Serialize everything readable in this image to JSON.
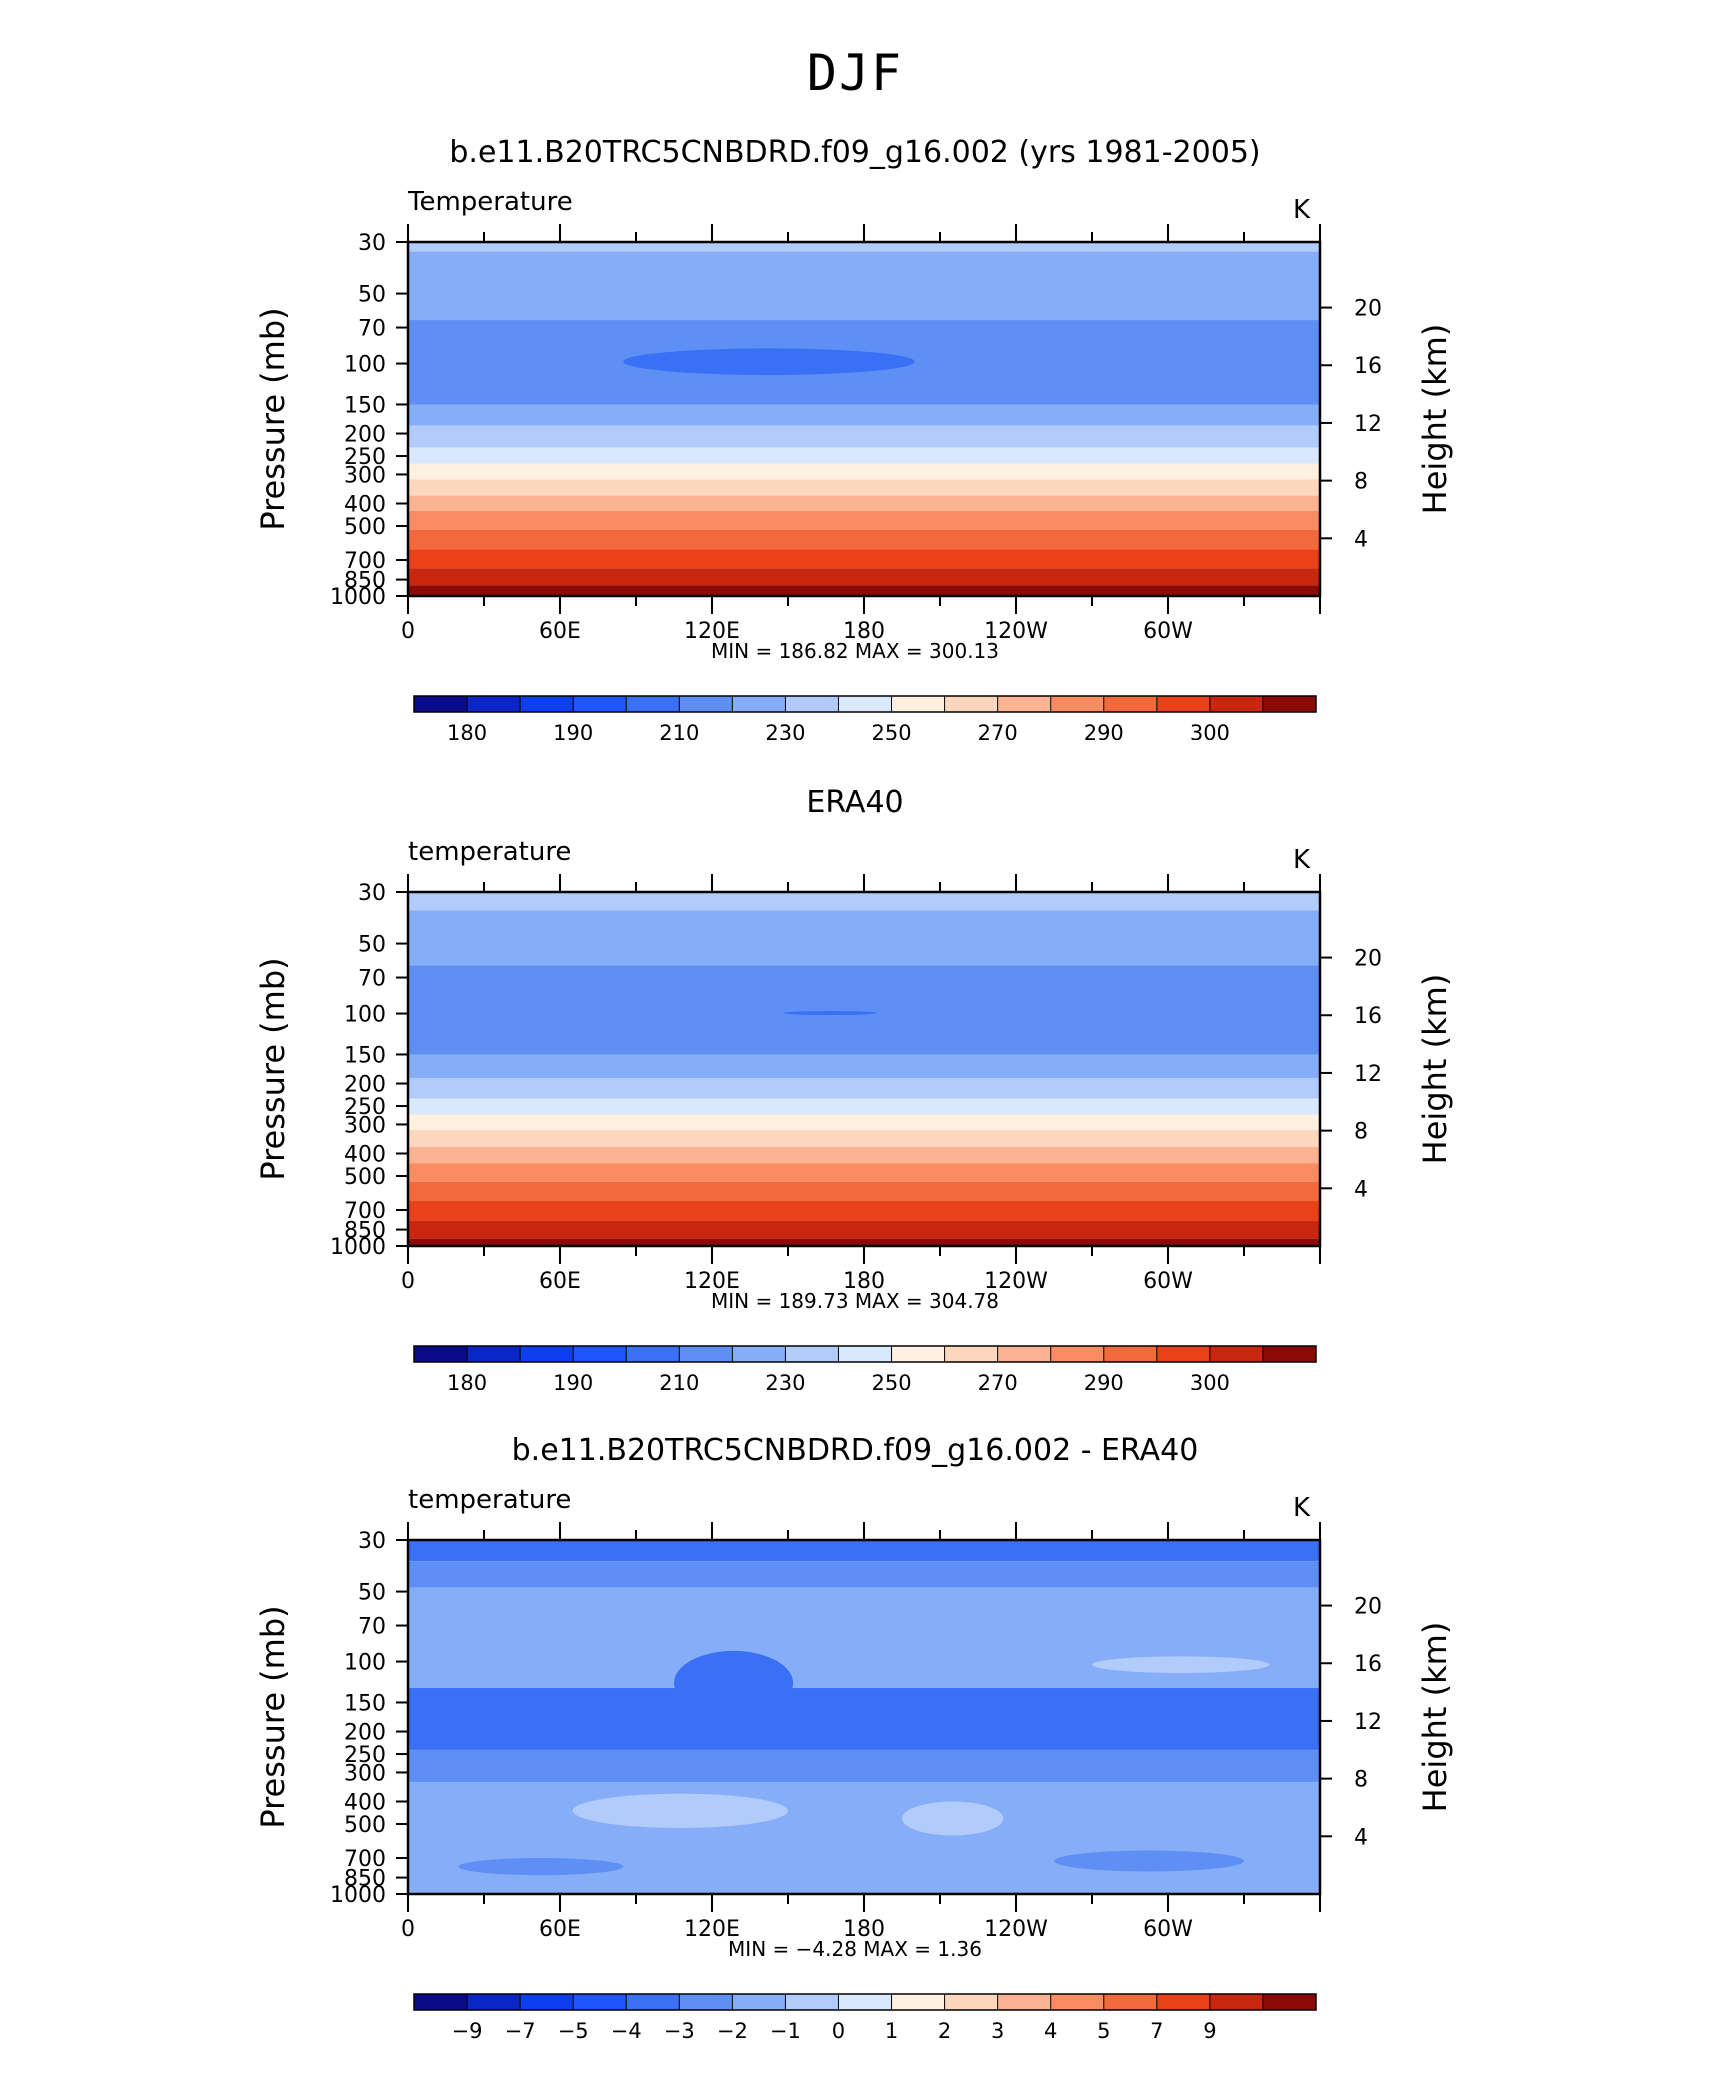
{
  "figure": {
    "title": "DJF"
  },
  "chart_data": [
    {
      "type": "heatmap",
      "title": "b.e11.B20TRC5CNBDRD.f09_g16.002 (yrs 1981-2005)",
      "left_label": "Temperature",
      "units": "K",
      "ylabel": "Pressure (mb)",
      "ylabel_right": "Height (km)",
      "y_scale": "log",
      "ylim": [
        1000,
        30
      ],
      "xlim": [
        0,
        360
      ],
      "x_ticks": [
        "0",
        "60E",
        "120E",
        "180",
        "120W",
        "60W"
      ],
      "y_ticks": [
        30,
        50,
        70,
        100,
        150,
        200,
        250,
        300,
        400,
        500,
        700,
        850,
        1000
      ],
      "y_right_ticks": [
        4,
        8,
        12,
        16,
        20
      ],
      "stats": "MIN = 186.82 MAX = 300.13",
      "colorbar": {
        "labels": [
          "180",
          "190",
          "210",
          "230",
          "250",
          "270",
          "290",
          "300"
        ]
      },
      "bands": [
        {
          "p": [
            30,
            33
          ],
          "level": 7
        },
        {
          "p": [
            33,
            65
          ],
          "level": 6
        },
        {
          "p": [
            65,
            150
          ],
          "level": 5
        },
        {
          "p": [
            150,
            185
          ],
          "level": 6
        },
        {
          "p": [
            185,
            230
          ],
          "level": 7
        },
        {
          "p": [
            230,
            270
          ],
          "level": 8
        },
        {
          "p": [
            270,
            315
          ],
          "level": 9
        },
        {
          "p": [
            315,
            370
          ],
          "level": 10
        },
        {
          "p": [
            370,
            430
          ],
          "level": 11
        },
        {
          "p": [
            430,
            520
          ],
          "level": 12
        },
        {
          "p": [
            520,
            630
          ],
          "level": 13
        },
        {
          "p": [
            630,
            760
          ],
          "level": 14
        },
        {
          "p": [
            760,
            900
          ],
          "level": 15
        },
        {
          "p": [
            900,
            1000
          ],
          "level": 16
        }
      ],
      "features": [
        {
          "lon": [
            85,
            200
          ],
          "p": [
            86,
            112
          ],
          "level": 4
        }
      ]
    },
    {
      "type": "heatmap",
      "title": "ERA40",
      "left_label": "temperature",
      "units": "K",
      "ylabel": "Pressure (mb)",
      "ylabel_right": "Height (km)",
      "y_scale": "log",
      "ylim": [
        1000,
        30
      ],
      "xlim": [
        0,
        360
      ],
      "x_ticks": [
        "0",
        "60E",
        "120E",
        "180",
        "120W",
        "60W"
      ],
      "y_ticks": [
        30,
        50,
        70,
        100,
        150,
        200,
        250,
        300,
        400,
        500,
        700,
        850,
        1000
      ],
      "y_right_ticks": [
        4,
        8,
        12,
        16,
        20
      ],
      "stats": "MIN = 189.73 MAX = 304.78",
      "colorbar": {
        "labels": [
          "180",
          "190",
          "210",
          "230",
          "250",
          "270",
          "290",
          "300"
        ]
      },
      "bands": [
        {
          "p": [
            30,
            36
          ],
          "level": 7
        },
        {
          "p": [
            36,
            62
          ],
          "level": 6
        },
        {
          "p": [
            62,
            150
          ],
          "level": 5
        },
        {
          "p": [
            150,
            190
          ],
          "level": 6
        },
        {
          "p": [
            190,
            232
          ],
          "level": 7
        },
        {
          "p": [
            232,
            272
          ],
          "level": 8
        },
        {
          "p": [
            272,
            318
          ],
          "level": 9
        },
        {
          "p": [
            318,
            375
          ],
          "level": 10
        },
        {
          "p": [
            375,
            440
          ],
          "level": 11
        },
        {
          "p": [
            440,
            530
          ],
          "level": 12
        },
        {
          "p": [
            530,
            640
          ],
          "level": 13
        },
        {
          "p": [
            640,
            780
          ],
          "level": 14
        },
        {
          "p": [
            780,
            930
          ],
          "level": 15
        },
        {
          "p": [
            930,
            1000
          ],
          "level": 16
        }
      ],
      "features": [
        {
          "lon": [
            148,
            185
          ],
          "p": [
            98,
            101
          ],
          "level": 4
        }
      ]
    },
    {
      "type": "heatmap",
      "title": "b.e11.B20TRC5CNBDRD.f09_g16.002 - ERA40",
      "left_label": "temperature",
      "units": "K",
      "ylabel": "Pressure (mb)",
      "ylabel_right": "Height (km)",
      "y_scale": "log",
      "ylim": [
        1000,
        30
      ],
      "xlim": [
        0,
        360
      ],
      "x_ticks": [
        "0",
        "60E",
        "120E",
        "180",
        "120W",
        "60W"
      ],
      "y_ticks": [
        30,
        50,
        70,
        100,
        150,
        200,
        250,
        300,
        400,
        500,
        700,
        850,
        1000
      ],
      "y_right_ticks": [
        4,
        8,
        12,
        16,
        20
      ],
      "stats": "MIN = −4.28 MAX = 1.36",
      "colorbar": {
        "labels": [
          "−9",
          "−7",
          "−5",
          "−4",
          "−3",
          "−2",
          "−1",
          "0",
          "1",
          "2",
          "3",
          "4",
          "5",
          "7",
          "9"
        ]
      },
      "bands": [
        {
          "p": [
            30,
            37
          ],
          "level": 4
        },
        {
          "p": [
            37,
            48
          ],
          "level": 5
        },
        {
          "p": [
            48,
            60
          ],
          "level": 6
        },
        {
          "p": [
            60,
            130
          ],
          "level": 6
        },
        {
          "p": [
            130,
            240
          ],
          "level": 4
        },
        {
          "p": [
            240,
            330
          ],
          "level": 5
        },
        {
          "p": [
            330,
            1000
          ],
          "level": 6
        }
      ],
      "features": [
        {
          "lon": [
            105,
            152
          ],
          "p": [
            90,
            170
          ],
          "level": 4
        },
        {
          "lon": [
            270,
            340
          ],
          "p": [
            95,
            112
          ],
          "level": 7
        },
        {
          "lon": [
            65,
            150
          ],
          "p": [
            370,
            520
          ],
          "level": 7
        },
        {
          "lon": [
            195,
            235
          ],
          "p": [
            400,
            560
          ],
          "level": 7
        },
        {
          "lon": [
            20,
            85
          ],
          "p": [
            700,
            830
          ],
          "level": 5
        },
        {
          "lon": [
            255,
            330
          ],
          "p": [
            650,
            800
          ],
          "level": 5
        }
      ]
    }
  ],
  "colorscale": [
    "#0a0a8a",
    "#0a25c8",
    "#0d3ff0",
    "#1f55ff",
    "#3a70f5",
    "#5e8ff5",
    "#86adf8",
    "#b1ccfb",
    "#d9e8fd",
    "#fff0e0",
    "#fcd6bd",
    "#fbb393",
    "#f98c62",
    "#f26a3c",
    "#e94119",
    "#c8260e",
    "#8b0a08"
  ]
}
